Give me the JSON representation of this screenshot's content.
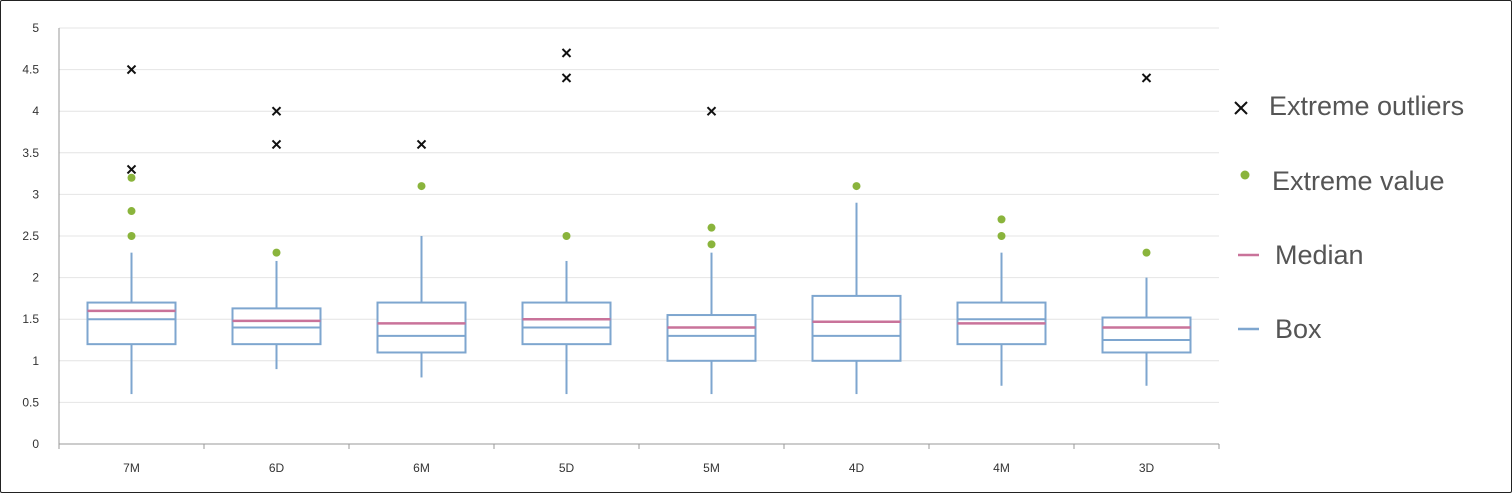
{
  "chart_data": {
    "type": "box",
    "title": "",
    "xlabel": "",
    "ylabel": "",
    "ylim": [
      0,
      5
    ],
    "yticks": [
      "0",
      "0.5",
      "1",
      "1.5",
      "2",
      "2.5",
      "3",
      "3.5",
      "4",
      "4.5",
      "5"
    ],
    "grid": true,
    "legend_position": "right",
    "colors": {
      "box": "#7ea6cf",
      "median": "#c9739a",
      "extreme_value": "#8ab43c",
      "outlier": "#111111",
      "grid": "#e4e4e4"
    },
    "legend": [
      {
        "symbol": "x",
        "label": "Extreme outliers"
      },
      {
        "symbol": "dot",
        "label": "Extreme value"
      },
      {
        "symbol": "line-median",
        "label": "Median"
      },
      {
        "symbol": "line-box",
        "label": "Box"
      }
    ],
    "categories": [
      "7M",
      "6D",
      "6M",
      "5D",
      "5M",
      "4D",
      "4M",
      "3D"
    ],
    "boxes": [
      {
        "category": "7M",
        "whisker_low": 0.6,
        "q1": 1.2,
        "mean": 1.5,
        "median": 1.6,
        "q3": 1.7,
        "whisker_high": 2.3,
        "extreme_values": [
          2.5,
          2.8,
          3.2
        ],
        "outliers": [
          3.3,
          4.5
        ]
      },
      {
        "category": "6D",
        "whisker_low": 0.9,
        "q1": 1.2,
        "mean": 1.4,
        "median": 1.48,
        "q3": 1.63,
        "whisker_high": 2.2,
        "extreme_values": [
          2.3
        ],
        "outliers": [
          3.6,
          4.0
        ]
      },
      {
        "category": "6M",
        "whisker_low": 0.8,
        "q1": 1.1,
        "mean": 1.3,
        "median": 1.45,
        "q3": 1.7,
        "whisker_high": 2.5,
        "extreme_values": [
          3.1
        ],
        "outliers": [
          3.6
        ]
      },
      {
        "category": "5D",
        "whisker_low": 0.6,
        "q1": 1.2,
        "mean": 1.4,
        "median": 1.5,
        "q3": 1.7,
        "whisker_high": 2.2,
        "extreme_values": [
          2.5
        ],
        "outliers": [
          4.4,
          4.7
        ]
      },
      {
        "category": "5M",
        "whisker_low": 0.6,
        "q1": 1.0,
        "mean": 1.3,
        "median": 1.4,
        "q3": 1.55,
        "whisker_high": 2.3,
        "extreme_values": [
          2.4,
          2.6
        ],
        "outliers": [
          4.0
        ]
      },
      {
        "category": "4D",
        "whisker_low": 0.6,
        "q1": 1.0,
        "mean": 1.3,
        "median": 1.47,
        "q3": 1.78,
        "whisker_high": 2.9,
        "extreme_values": [
          3.1
        ],
        "outliers": []
      },
      {
        "category": "4M",
        "whisker_low": 0.7,
        "q1": 1.2,
        "mean": 1.5,
        "median": 1.45,
        "q3": 1.7,
        "whisker_high": 2.3,
        "extreme_values": [
          2.5,
          2.7
        ],
        "outliers": []
      },
      {
        "category": "3D",
        "whisker_low": 0.7,
        "q1": 1.1,
        "mean": 1.25,
        "median": 1.4,
        "q3": 1.52,
        "whisker_high": 2.0,
        "extreme_values": [
          2.3
        ],
        "outliers": [
          4.4
        ]
      }
    ]
  }
}
